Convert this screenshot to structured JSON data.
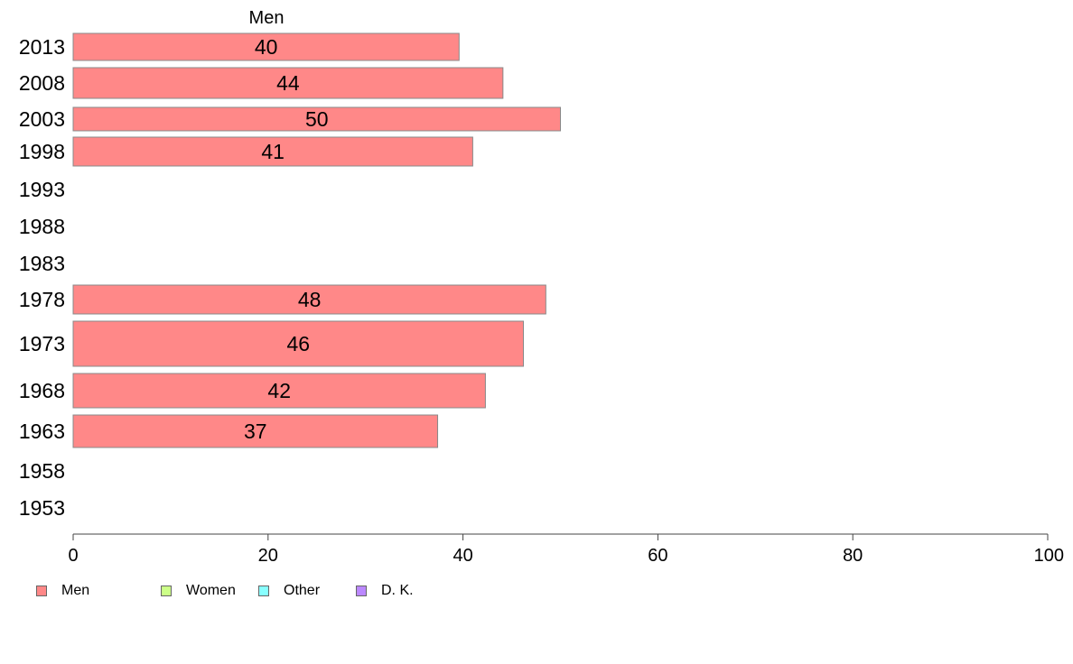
{
  "chart_data": {
    "type": "bar",
    "orientation": "horizontal",
    "title": "Men",
    "categories": [
      "2013",
      "2008",
      "2003",
      "1998",
      "1993",
      "1988",
      "1983",
      "1978",
      "1973",
      "1968",
      "1963",
      "1958",
      "1953"
    ],
    "series": [
      {
        "name": "Men",
        "values": [
          40,
          44,
          50,
          41,
          null,
          null,
          null,
          48,
          46,
          42,
          37,
          null,
          null
        ]
      }
    ],
    "bar_values": [
      39.6,
      44.1,
      50.0,
      41.0,
      null,
      null,
      null,
      48.5,
      46.2,
      42.3,
      37.4,
      null,
      null
    ],
    "xlim": [
      0,
      100
    ],
    "xticks": [
      "0",
      "20",
      "40",
      "60",
      "80",
      "100"
    ],
    "legend_position": "bottom-left",
    "colors": {
      "Men": "#ff8888",
      "Women": "#ccff88",
      "Other": "#88ffff",
      "D. K.": "#bb88ff"
    }
  },
  "legend": [
    {
      "label": "Men",
      "color": "#ff8888"
    },
    {
      "label": "Women",
      "color": "#ccff88"
    },
    {
      "label": "Other",
      "color": "#88ffff"
    },
    {
      "label": "D. K.",
      "color": "#bb88ff"
    }
  ]
}
